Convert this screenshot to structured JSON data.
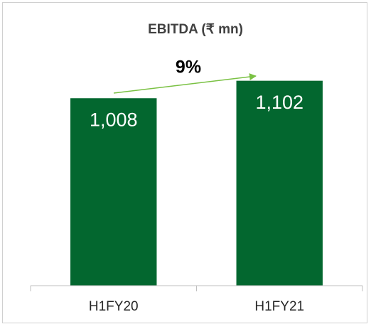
{
  "chart_data": {
    "type": "bar",
    "title": "EBITDA (₹ mn)",
    "categories": [
      "H1FY20",
      "H1FY21"
    ],
    "values": [
      1008,
      1102
    ],
    "value_labels": [
      "1,008",
      "1,102"
    ],
    "color": "#03672f",
    "ylim": [
      0,
      1200
    ],
    "annotation": "9%"
  }
}
